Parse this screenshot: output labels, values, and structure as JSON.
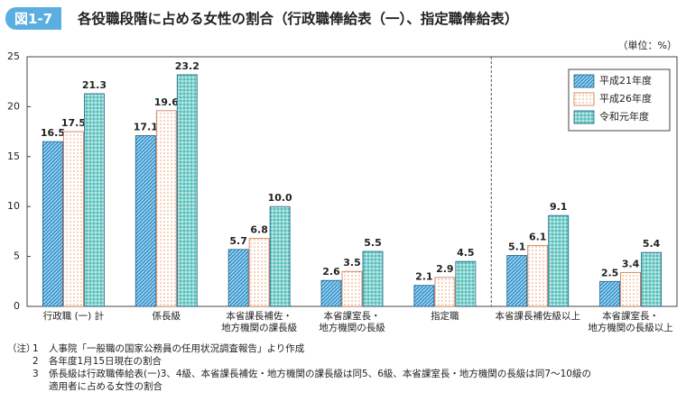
{
  "chart_data": {
    "type": "bar",
    "figure_label": "図1-7",
    "title": "各役職段階に占める女性の割合（行政職俸給表（一）、指定職俸給表）",
    "unit_label": "（単位：%）",
    "categories": [
      "行政職 (一) 計",
      "係長級",
      "本省課長補佐・\n地方機関の課長級",
      "本省課室長・\n地方機関の長級",
      "指定職",
      "本省課長補佐級以上",
      "本省課室長・\n地方機関の長級以上"
    ],
    "series": [
      {
        "name": "平成21年度",
        "color": "#3d9bd1",
        "values": [
          16.5,
          17.1,
          5.7,
          2.6,
          2.1,
          5.1,
          2.5
        ]
      },
      {
        "name": "平成26年度",
        "color": "#f2b48c",
        "values": [
          17.5,
          19.6,
          6.8,
          3.5,
          2.9,
          6.1,
          3.4
        ]
      },
      {
        "name": "令和元年度",
        "color": "#4dbdb8",
        "values": [
          21.3,
          23.2,
          10,
          5.5,
          4.5,
          9.1,
          5.4
        ],
        "value_labels": [
          "21.3",
          "23.2",
          "10.0",
          "5.5",
          "4.5",
          "9.1",
          "5.4"
        ]
      }
    ],
    "ylim": [
      0,
      25
    ],
    "yticks": [
      0,
      5,
      10,
      15,
      20,
      25
    ],
    "grid": false,
    "legend": "top-right"
  },
  "notes": {
    "label": "（注）",
    "items": [
      {
        "number": "1",
        "text": "人事院「一般職の国家公務員の任用状況調査報告」より作成"
      },
      {
        "number": "2",
        "text": "各年度1月15日現在の割合"
      },
      {
        "number": "3",
        "text": "係長級は行政職俸給表(一)3、4級、本省課長補佐・地方機関の課長級は同5、6級、本省課室長・地方機関の長級は同7～10級の\n適用者に占める女性の割合"
      }
    ]
  }
}
